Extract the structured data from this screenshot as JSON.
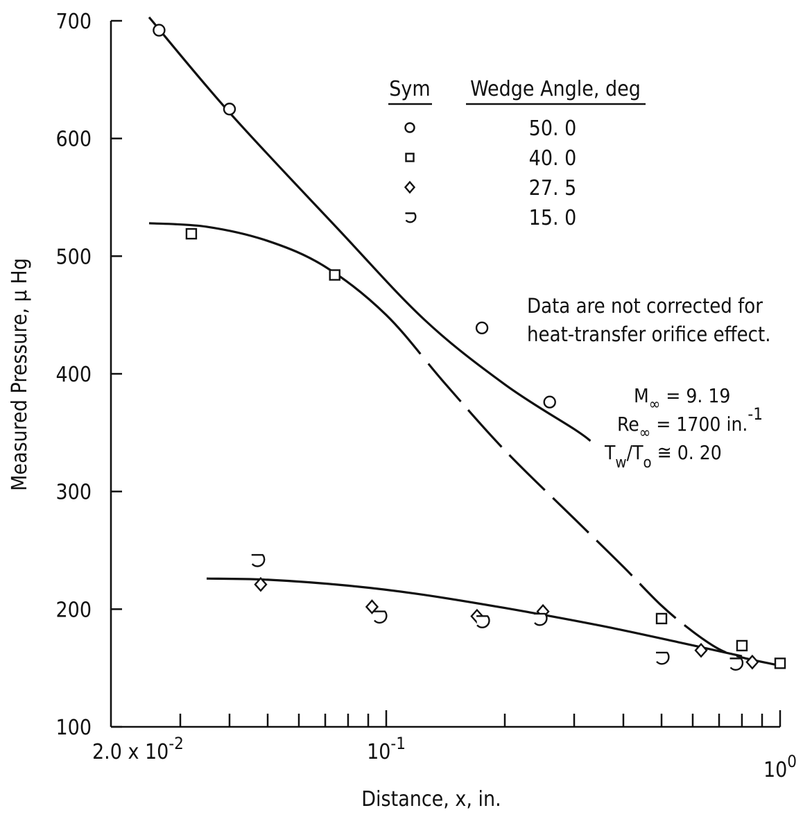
{
  "chart_data": {
    "type": "scatter",
    "title": "",
    "xlabel": "Distance, x, in.",
    "ylabel": "Measured Pressure, μ Hg",
    "x_scale": "log",
    "xlim": [
      0.02,
      1.0
    ],
    "ylim": [
      100,
      700
    ],
    "grid": false,
    "x_tick_labels": [
      {
        "value": 0.02,
        "label": "2.0 x 10",
        "exp": "-2"
      },
      {
        "value": 0.1,
        "label": "10",
        "exp": "-1"
      },
      {
        "value": 1.0,
        "label": "10",
        "exp": "0"
      }
    ],
    "y_ticks": [
      100,
      200,
      300,
      400,
      500,
      600,
      700
    ],
    "legend": {
      "placement": "top-right",
      "sym_header": "Sym",
      "value_header": "Wedge Angle, deg",
      "entries": [
        {
          "marker": "circle",
          "value": "50. 0"
        },
        {
          "marker": "square",
          "value": "40. 0"
        },
        {
          "marker": "diamond",
          "value": "27. 5"
        },
        {
          "marker": "half-circle",
          "value": "15. 0"
        }
      ]
    },
    "series": [
      {
        "name": "50. 0",
        "marker": "circle",
        "x": [
          0.0265,
          0.04,
          0.175,
          0.26
        ],
        "y": [
          692,
          625,
          439,
          376
        ]
      },
      {
        "name": "40. 0",
        "marker": "square",
        "x": [
          0.032,
          0.074,
          0.5,
          0.8,
          1.0
        ],
        "y": [
          519,
          484,
          192,
          169,
          154
        ]
      },
      {
        "name": "27. 5",
        "marker": "diamond",
        "x": [
          0.048,
          0.092,
          0.17,
          0.25,
          0.63,
          0.85
        ],
        "y": [
          221,
          202,
          194,
          198,
          165,
          155
        ]
      },
      {
        "name": "15. 0",
        "marker": "half-circle",
        "x": [
          0.047,
          0.096,
          0.175,
          0.245,
          0.5,
          0.77
        ],
        "y": [
          242,
          194,
          190,
          192,
          159,
          154
        ]
      }
    ],
    "curves": [
      {
        "style": "solid",
        "x": [
          0.025,
          0.04,
          0.075,
          0.125,
          0.2,
          0.3,
          0.33
        ],
        "y": [
          703,
          622,
          524,
          446,
          391,
          353,
          343
        ]
      },
      {
        "style": "solid-dashed",
        "x": [
          0.025,
          0.035,
          0.05,
          0.07,
          0.1,
          0.14,
          0.2,
          0.3,
          0.4,
          0.5,
          0.6,
          0.7,
          0.8,
          1.0,
          1.03
        ],
        "y": [
          528,
          525,
          513,
          491,
          450,
          393,
          335,
          277,
          236,
          203,
          181,
          166,
          159,
          152,
          150
        ]
      },
      {
        "style": "solid",
        "x": [
          0.035,
          0.05,
          0.08,
          0.12,
          0.2,
          0.35,
          0.55,
          0.8
        ],
        "y": [
          226,
          225,
          220,
          213,
          201,
          186,
          172,
          160
        ]
      }
    ],
    "annotations": {
      "note_line1": "Data are not corrected for",
      "note_line2": "heat-transfer orifice effect.",
      "mach": {
        "var": "M",
        "sub": "∞",
        "rel": " = ",
        "val": "9. 19"
      },
      "reynolds": {
        "var": "Re",
        "sub": "∞",
        "rel": " = ",
        "val": "1700 in.",
        "sup": "-1"
      },
      "temp_ratio": {
        "var1": "T",
        "sub1": "w",
        "slash": "/",
        "var2": "T",
        "sub2": "o",
        "rel": " ≅ ",
        "val": "0. 20"
      }
    }
  }
}
